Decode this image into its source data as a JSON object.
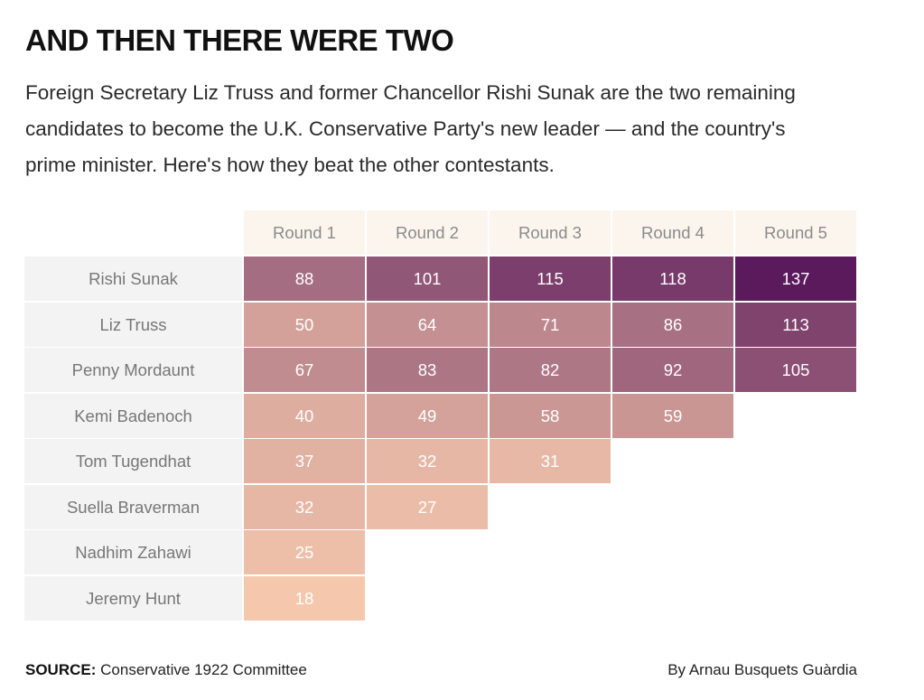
{
  "header": {
    "title": "AND THEN THERE WERE TWO",
    "subtitle": "Foreign Secretary Liz Truss and former Chancellor Rishi Sunak are the two remaining candidates to become the U.K. Conservative Party's new leader — and the country's prime minister. Here's how they beat the other contestants."
  },
  "footer": {
    "source_label": "SOURCE:",
    "source_text": "Conservative 1922 Committee",
    "credit": "By Arnau Busquets Guàrdia"
  },
  "colors": {
    "scale_low": "#f5c8ad",
    "scale_mid": "#b57f89",
    "scale_high": "#5a1a5c",
    "header_bg": "#fbf5ee",
    "name_bg": "#f3f3f3"
  },
  "chart_data": {
    "type": "heatmap",
    "title": "AND THEN THERE WERE TWO",
    "columns": [
      "Round 1",
      "Round 2",
      "Round 3",
      "Round 4",
      "Round 5"
    ],
    "rows": [
      {
        "name": "Rishi Sunak",
        "values": [
          88,
          101,
          115,
          118,
          137
        ]
      },
      {
        "name": "Liz Truss",
        "values": [
          50,
          64,
          71,
          86,
          113
        ]
      },
      {
        "name": "Penny Mordaunt",
        "values": [
          67,
          83,
          82,
          92,
          105
        ]
      },
      {
        "name": "Kemi Badenoch",
        "values": [
          40,
          49,
          58,
          59
        ]
      },
      {
        "name": "Tom Tugendhat",
        "values": [
          37,
          32,
          31
        ]
      },
      {
        "name": "Suella Braverman",
        "values": [
          32,
          27
        ]
      },
      {
        "name": "Nadhim Zahawi",
        "values": [
          25
        ]
      },
      {
        "name": "Jeremy Hunt",
        "values": [
          18
        ]
      }
    ],
    "value_range": [
      18,
      137
    ]
  }
}
